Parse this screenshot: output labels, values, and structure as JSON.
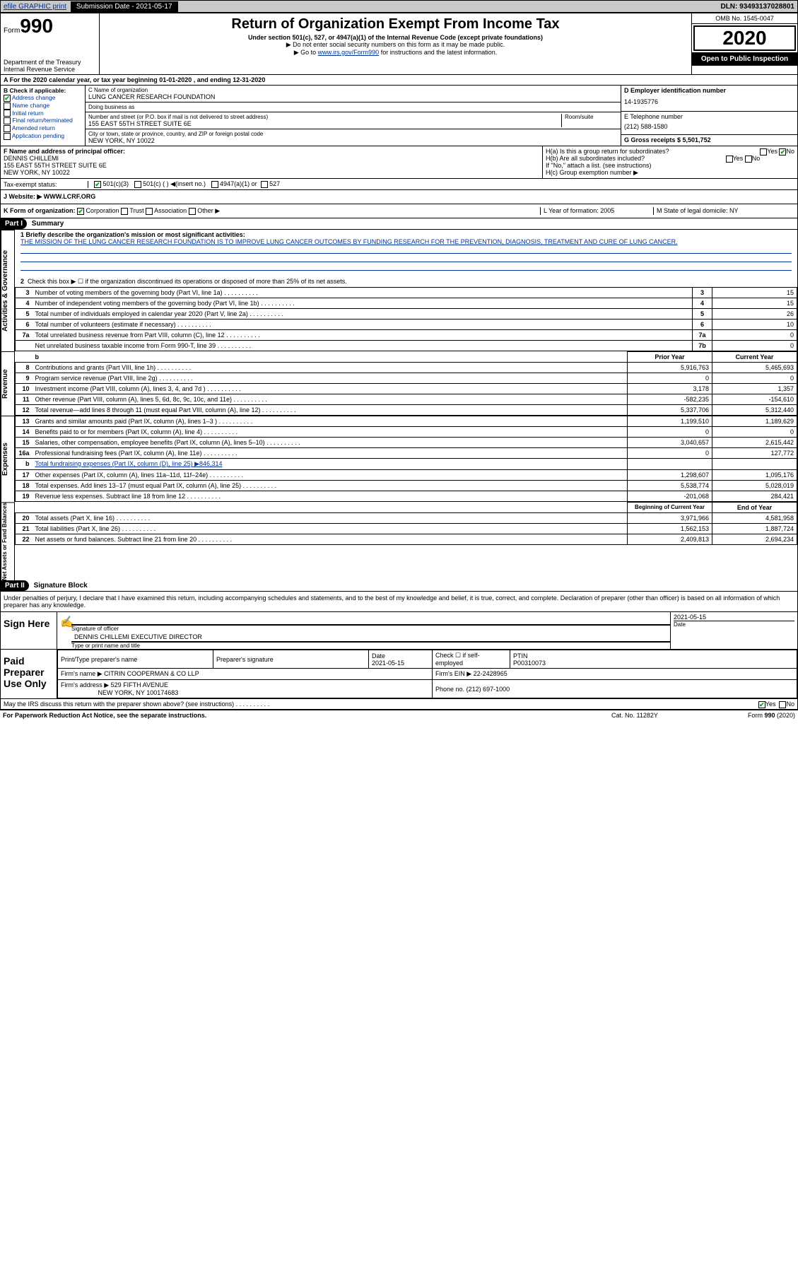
{
  "topbar": {
    "efile": "efile GRAPHIC print",
    "subdate_label": "Submission Date - 2021-05-17",
    "dln": "DLN: 93493137028801"
  },
  "header": {
    "form_label": "Form",
    "form_num": "990",
    "dept": "Department of the Treasury\nInternal Revenue Service",
    "title": "Return of Organization Exempt From Income Tax",
    "sub1": "Under section 501(c), 527, or 4947(a)(1) of the Internal Revenue Code (except private foundations)",
    "sub2": "▶ Do not enter social security numbers on this form as it may be made public.",
    "sub3_pre": "▶ Go to ",
    "sub3_link": "www.irs.gov/Form990",
    "sub3_post": " for instructions and the latest information.",
    "omb": "OMB No. 1545-0047",
    "year": "2020",
    "open": "Open to Public Inspection"
  },
  "period": "A For the 2020 calendar year, or tax year beginning 01-01-2020    , and ending 12-31-2020",
  "boxB": {
    "label": "B Check if applicable:",
    "items": [
      "Address change",
      "Name change",
      "Initial return",
      "Final return/terminated",
      "Amended return",
      "Application pending"
    ],
    "checked": [
      true,
      false,
      false,
      false,
      false,
      false
    ]
  },
  "boxC": {
    "name_label": "C Name of organization",
    "name": "LUNG CANCER RESEARCH FOUNDATION",
    "dba_label": "Doing business as",
    "dba": "",
    "addr_label": "Number and street (or P.O. box if mail is not delivered to street address)",
    "room_label": "Room/suite",
    "addr": "155 EAST 55TH STREET SUITE 6E",
    "city_label": "City or town, state or province, country, and ZIP or foreign postal code",
    "city": "NEW YORK, NY  10022"
  },
  "boxD": {
    "label": "D Employer identification number",
    "val": "14-1935776"
  },
  "boxE": {
    "label": "E Telephone number",
    "val": "(212) 588-1580"
  },
  "boxG": {
    "label": "G Gross receipts $ 5,501,752"
  },
  "boxF": {
    "label": "F  Name and address of principal officer:",
    "name": "DENNIS CHILLEMI",
    "addr1": "155 EAST 55TH STREET SUITE 6E",
    "addr2": "NEW YORK, NY  10022"
  },
  "boxH": {
    "a": "H(a)  Is this a group return for subordinates?",
    "a_yes": "Yes",
    "a_no": "No",
    "a_checked": "No",
    "b": "H(b)  Are all subordinates included?",
    "b_yes": "Yes",
    "b_no": "No",
    "note": "If \"No,\" attach a list. (see instructions)",
    "c": "H(c)  Group exemption number ▶"
  },
  "taxrow": {
    "label": "Tax-exempt status:",
    "opt1": "501(c)(3)",
    "opt2": "501(c) (  ) ◀(insert no.)",
    "opt3": "4947(a)(1) or",
    "opt4": "527",
    "checked": 1
  },
  "website": {
    "label": "J   Website: ▶",
    "val": "WWW.LCRF.ORG"
  },
  "kline": {
    "k": "K Form of organization:",
    "opts": [
      "Corporation",
      "Trust",
      "Association",
      "Other ▶"
    ],
    "checked": 0,
    "l": "L Year of formation: 2005",
    "m": "M State of legal domicile: NY"
  },
  "part1": {
    "hdr": "Part I",
    "title": "Summary",
    "line1_label": "1  Briefly describe the organization's mission or most significant activities:",
    "mission": "THE MISSION OF THE LUNG CANCER RESEARCH FOUNDATION IS TO IMPROVE LUNG CANCER OUTCOMES BY FUNDING RESEARCH FOR THE PREVENTION, DIAGNOSIS, TREATMENT AND CURE OF LUNG CANCER.",
    "line2": "Check this box ▶ ☐  if the organization discontinued its operations or disposed of more than 25% of its net assets.",
    "side_ag": "Activities & Governance",
    "side_rev": "Revenue",
    "side_exp": "Expenses",
    "side_net": "Net Assets or Fund Balances",
    "ag_rows": [
      {
        "n": "3",
        "d": "Number of voting members of the governing body (Part VI, line 1a)",
        "box": "3",
        "v": "15"
      },
      {
        "n": "4",
        "d": "Number of independent voting members of the governing body (Part VI, line 1b)",
        "box": "4",
        "v": "15"
      },
      {
        "n": "5",
        "d": "Total number of individuals employed in calendar year 2020 (Part V, line 2a)",
        "box": "5",
        "v": "26"
      },
      {
        "n": "6",
        "d": "Total number of volunteers (estimate if necessary)",
        "box": "6",
        "v": "10"
      },
      {
        "n": "7a",
        "d": "Total unrelated business revenue from Part VIII, column (C), line 12",
        "box": "7a",
        "v": "0"
      },
      {
        "n": "",
        "d": "Net unrelated business taxable income from Form 990-T, line 39",
        "box": "7b",
        "v": "0"
      }
    ],
    "col_hdr_prior": "Prior Year",
    "col_hdr_curr": "Current Year",
    "rev_rows": [
      {
        "n": "8",
        "d": "Contributions and grants (Part VIII, line 1h)",
        "p": "5,916,763",
        "c": "5,465,693"
      },
      {
        "n": "9",
        "d": "Program service revenue (Part VIII, line 2g)",
        "p": "0",
        "c": "0"
      },
      {
        "n": "10",
        "d": "Investment income (Part VIII, column (A), lines 3, 4, and 7d )",
        "p": "3,178",
        "c": "1,357"
      },
      {
        "n": "11",
        "d": "Other revenue (Part VIII, column (A), lines 5, 6d, 8c, 9c, 10c, and 11e)",
        "p": "-582,235",
        "c": "-154,610"
      },
      {
        "n": "12",
        "d": "Total revenue—add lines 8 through 11 (must equal Part VIII, column (A), line 12)",
        "p": "5,337,706",
        "c": "5,312,440"
      }
    ],
    "exp_rows": [
      {
        "n": "13",
        "d": "Grants and similar amounts paid (Part IX, column (A), lines 1–3 )",
        "p": "1,199,510",
        "c": "1,189,629"
      },
      {
        "n": "14",
        "d": "Benefits paid to or for members (Part IX, column (A), line 4)",
        "p": "0",
        "c": "0"
      },
      {
        "n": "15",
        "d": "Salaries, other compensation, employee benefits (Part IX, column (A), lines 5–10)",
        "p": "3,040,657",
        "c": "2,615,442"
      },
      {
        "n": "16a",
        "d": "Professional fundraising fees (Part IX, column (A), line 11e)",
        "p": "0",
        "c": "127,772"
      },
      {
        "n": "b",
        "d": "Total fundraising expenses (Part IX, column (D), line 25) ▶846,314",
        "p": "",
        "c": "",
        "shade": true
      },
      {
        "n": "17",
        "d": "Other expenses (Part IX, column (A), lines 11a–11d, 11f–24e)",
        "p": "1,298,607",
        "c": "1,095,176"
      },
      {
        "n": "18",
        "d": "Total expenses. Add lines 13–17 (must equal Part IX, column (A), line 25)",
        "p": "5,538,774",
        "c": "5,028,019"
      },
      {
        "n": "19",
        "d": "Revenue less expenses. Subtract line 18 from line 12",
        "p": "-201,068",
        "c": "284,421"
      }
    ],
    "net_hdr_beg": "Beginning of Current Year",
    "net_hdr_end": "End of Year",
    "net_rows": [
      {
        "n": "20",
        "d": "Total assets (Part X, line 16)",
        "p": "3,971,966",
        "c": "4,581,958"
      },
      {
        "n": "21",
        "d": "Total liabilities (Part X, line 26)",
        "p": "1,562,153",
        "c": "1,887,724"
      },
      {
        "n": "22",
        "d": "Net assets or fund balances. Subtract line 21 from line 20",
        "p": "2,409,813",
        "c": "2,694,234"
      }
    ]
  },
  "part2": {
    "hdr": "Part II",
    "title": "Signature Block",
    "decl": "Under penalties of perjury, I declare that I have examined this return, including accompanying schedules and statements, and to the best of my knowledge and belief, it is true, correct, and complete. Declaration of preparer (other than officer) is based on all information of which preparer has any knowledge.",
    "sign_here": "Sign Here",
    "sig_officer": "Signature of officer",
    "sig_date_lab": "Date",
    "sig_date": "2021-05-15",
    "name_title": "DENNIS CHILLEMI  EXECUTIVE DIRECTOR",
    "name_title_lab": "Type or print name and title",
    "paid": "Paid Preparer Use Only",
    "prep_name_lab": "Print/Type preparer's name",
    "prep_sig_lab": "Preparer's signature",
    "prep_date_lab": "Date",
    "prep_date": "2021-05-15",
    "self_emp": "Check ☐  if self-employed",
    "ptin_lab": "PTIN",
    "ptin": "P00310073",
    "firm_name_lab": "Firm's name   ▶",
    "firm_name": "CITRIN COOPERMAN & CO LLP",
    "firm_ein_lab": "Firm's EIN ▶",
    "firm_ein": "22-2428965",
    "firm_addr_lab": "Firm's address ▶",
    "firm_addr1": "529 FIFTH AVENUE",
    "firm_addr2": "NEW YORK, NY  100174683",
    "firm_phone_lab": "Phone no.",
    "firm_phone": "(212) 697-1000",
    "discuss": "May the IRS discuss this return with the preparer shown above? (see instructions)",
    "discuss_yes": "Yes",
    "discuss_no": "No"
  },
  "footer": {
    "left": "For Paperwork Reduction Act Notice, see the separate instructions.",
    "mid": "Cat. No. 11282Y",
    "right": "Form 990 (2020)"
  }
}
